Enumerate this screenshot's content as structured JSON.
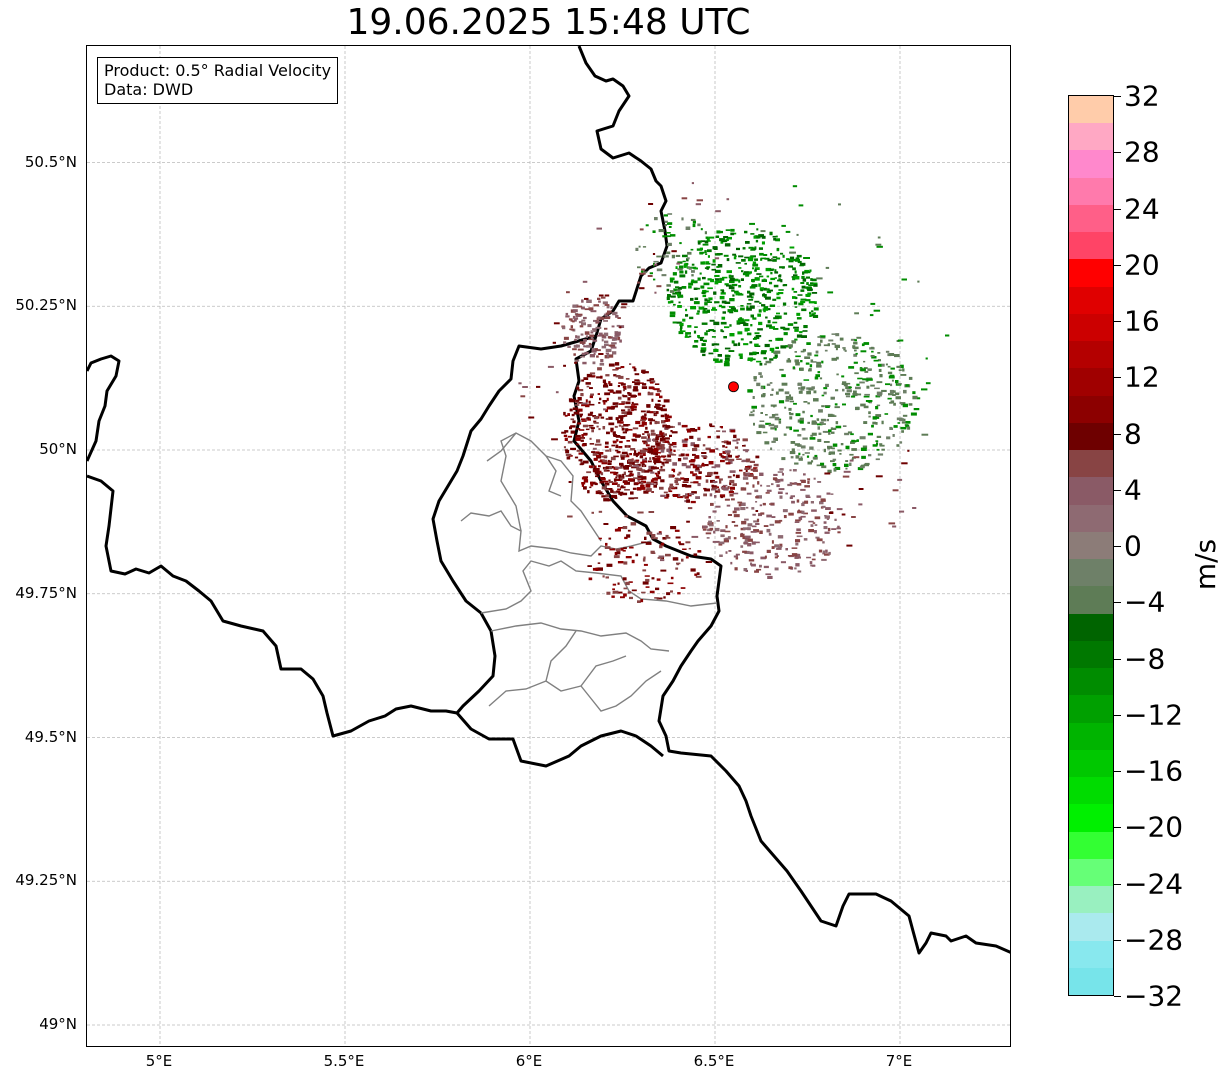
{
  "title": "19.06.2025 15:48 UTC",
  "info_box": {
    "product": "Product: 0.5° Radial Velocity",
    "data": "Data: DWD"
  },
  "map": {
    "lon_range": [
      4.8,
      7.3
    ],
    "lat_range": [
      48.95,
      50.7
    ],
    "gridlines": true,
    "x_ticks": [
      {
        "lon": 5.0,
        "label": "5°E"
      },
      {
        "lon": 5.5,
        "label": "5.5°E"
      },
      {
        "lon": 6.0,
        "label": "6°E"
      },
      {
        "lon": 6.5,
        "label": "6.5°E"
      },
      {
        "lon": 7.0,
        "label": "7°E"
      }
    ],
    "y_ticks": [
      {
        "lat": 50.5,
        "label": "50.5°N"
      },
      {
        "lat": 50.25,
        "label": "50.25°N"
      },
      {
        "lat": 50.0,
        "label": "50°N"
      },
      {
        "lat": 49.75,
        "label": "49.75°N"
      },
      {
        "lat": 49.5,
        "label": "49.5°N"
      },
      {
        "lat": 49.25,
        "label": "49.25°N"
      },
      {
        "lat": 49.0,
        "label": "49°N"
      }
    ],
    "radar_site": {
      "lon": 6.55,
      "lat": 50.11,
      "color": "#ff0000"
    }
  },
  "colorbar": {
    "unit": "m/s",
    "min": -32,
    "max": 32,
    "ticks": [
      "32",
      "28",
      "24",
      "20",
      "16",
      "12",
      "8",
      "4",
      "0",
      "−4",
      "−8",
      "−12",
      "−16",
      "−20",
      "−24",
      "−28",
      "−32"
    ],
    "tick_values": [
      32,
      28,
      24,
      20,
      16,
      12,
      8,
      4,
      0,
      -4,
      -8,
      -12,
      -16,
      -20,
      -24,
      -28,
      -32
    ],
    "colors_top_to_bottom": [
      "#ffccaa",
      "#ffa8c4",
      "#ff88cc",
      "#ff7aac",
      "#ff5f88",
      "#ff4466",
      "#ff0000",
      "#e00000",
      "#cc0000",
      "#b40000",
      "#a00000",
      "#8c0000",
      "#6e0000",
      "#884444",
      "#8a5a66",
      "#8e6a72",
      "#8c7c78",
      "#6e8068",
      "#5e7c56",
      "#006400",
      "#007800",
      "#008c00",
      "#00a000",
      "#00b400",
      "#00c800",
      "#00dc00",
      "#00f000",
      "#33ff33",
      "#66ff77",
      "#99f0c0",
      "#aaeaee",
      "#88e8ee",
      "#77e4ea"
    ]
  }
}
